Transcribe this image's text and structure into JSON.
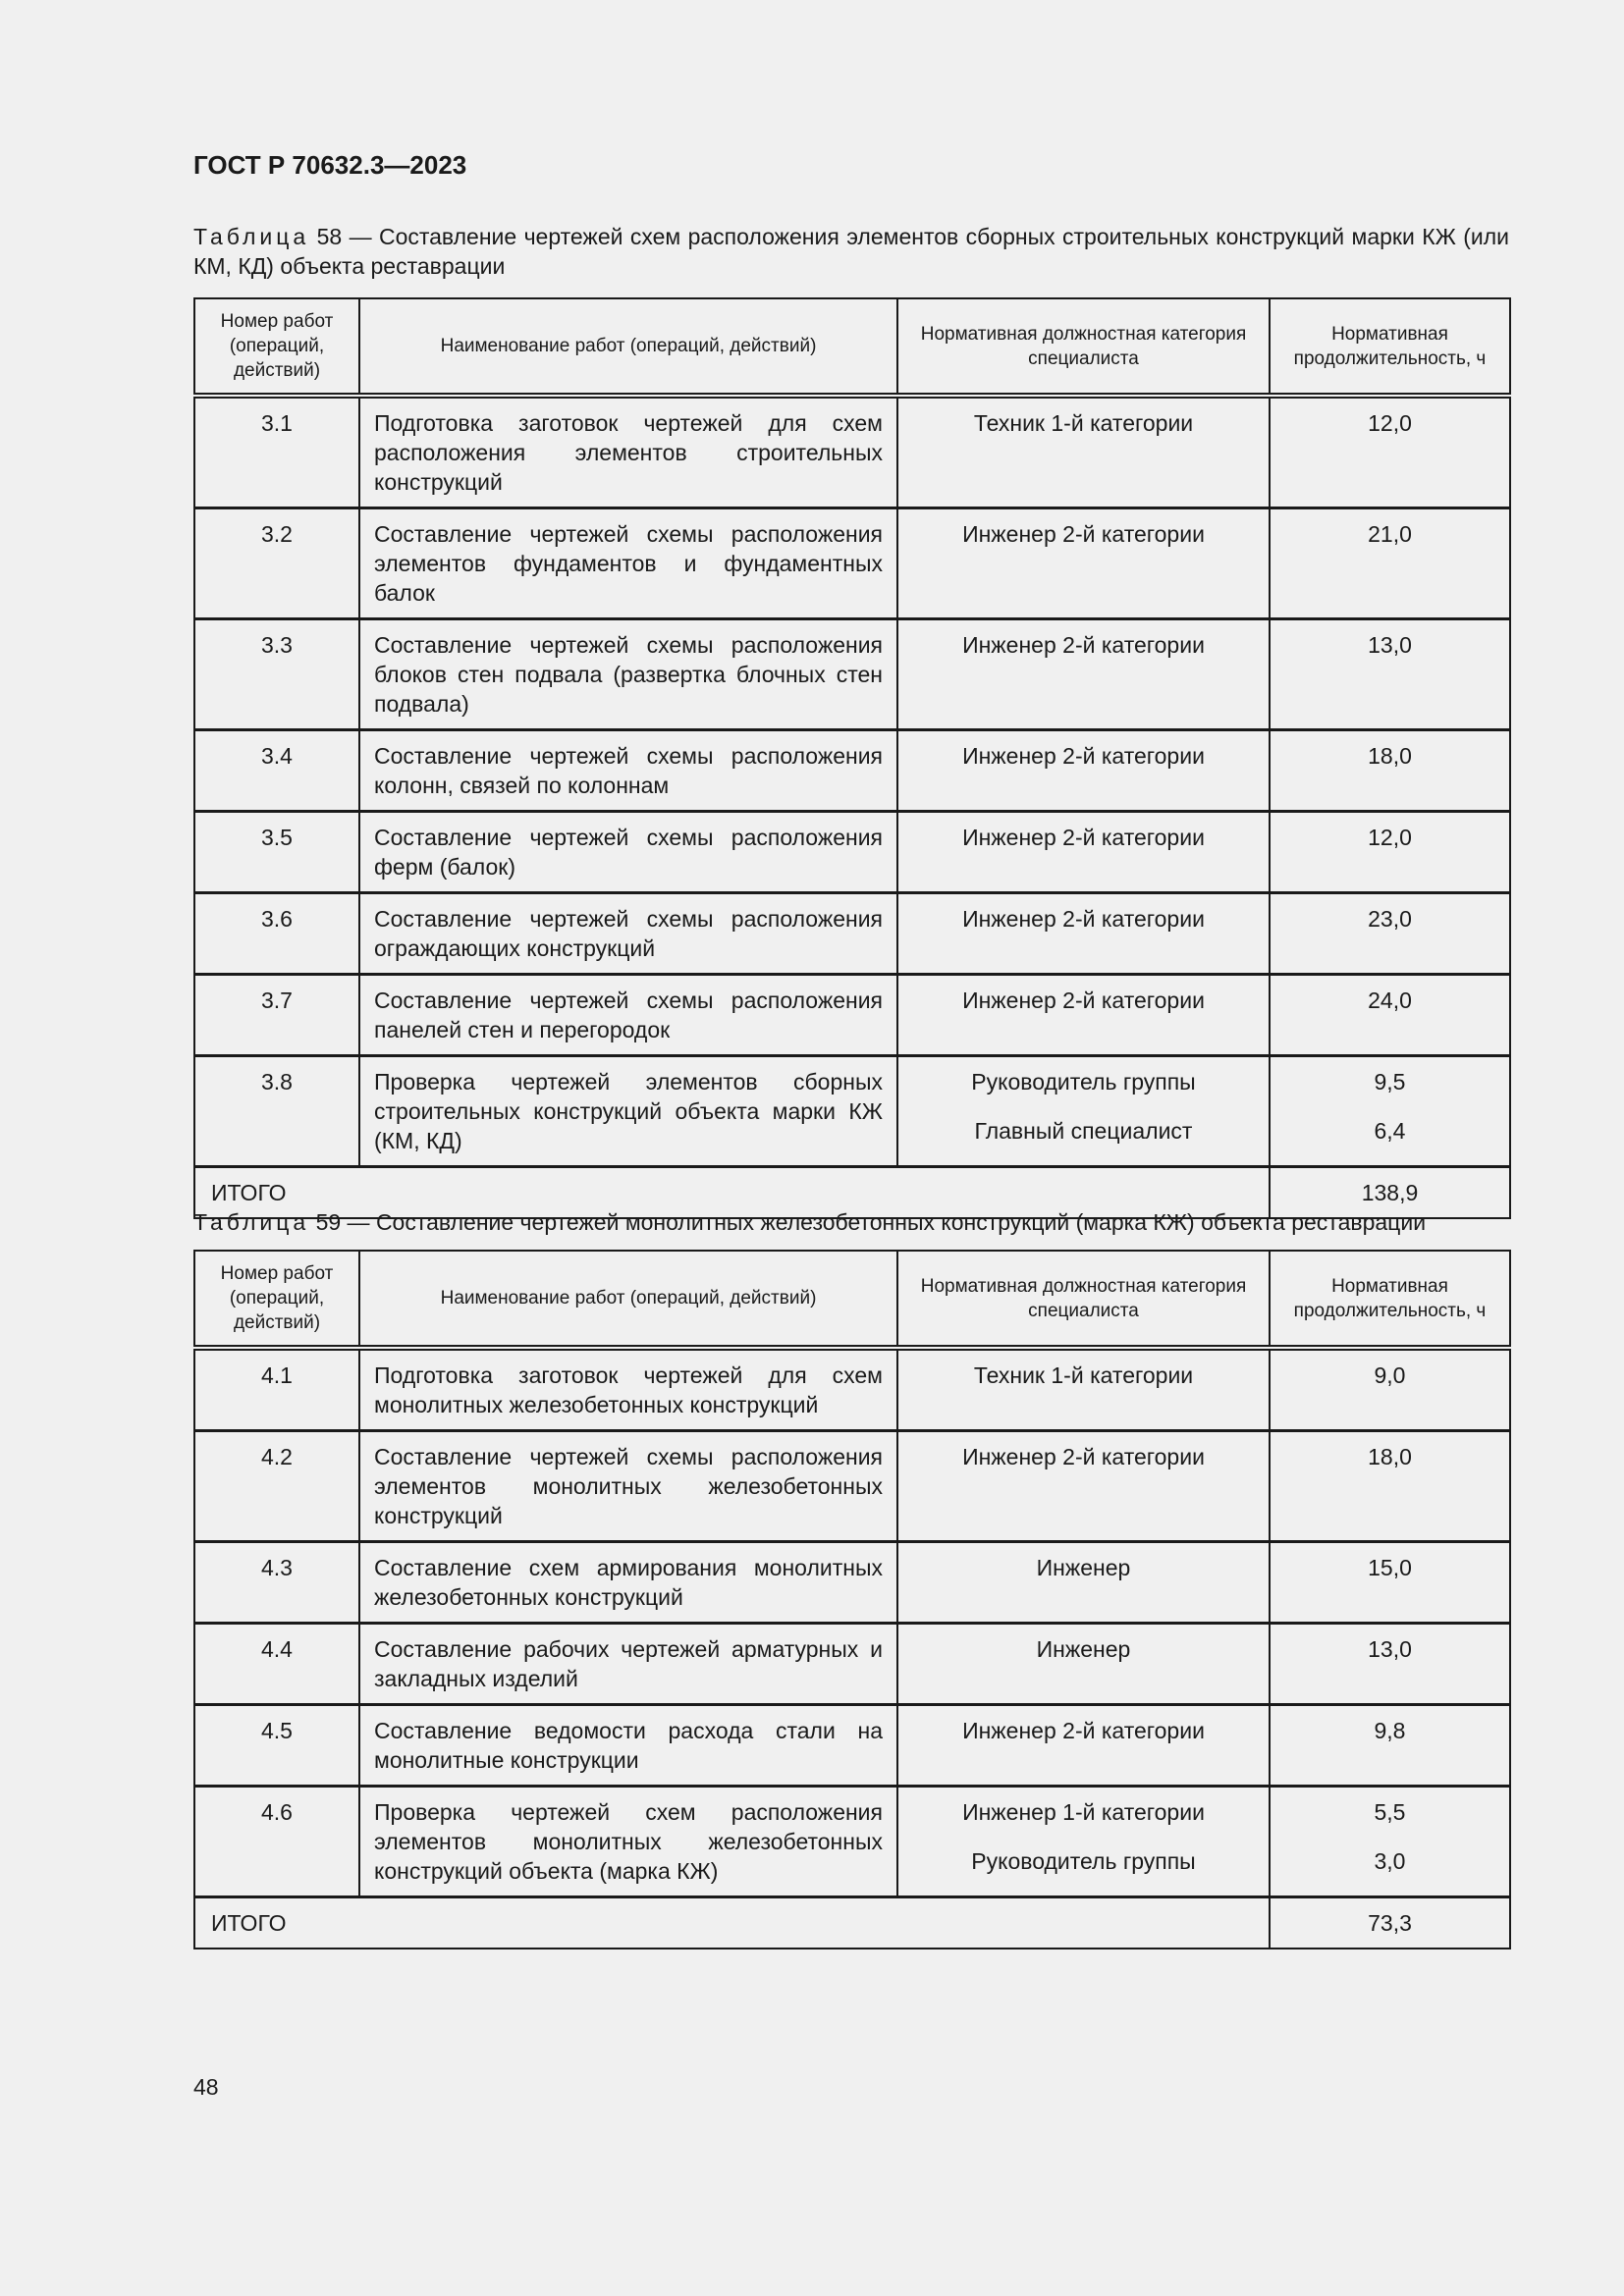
{
  "header": {
    "title": "ГОСТ Р 70632.3—2023"
  },
  "columns": [
    "Номер работ (операций, действий)",
    "Наименование работ (операций, действий)",
    "Нормативная должностная категория специалиста",
    "Нормативная продолжительность, ч"
  ],
  "tables": [
    {
      "label": "Таблица",
      "caption": "58 — Составление чертежей схем расположения элементов сборных строительных конструкций марки КЖ (или КМ, КД) объекта реставрации",
      "rows": [
        {
          "num": "3.1",
          "name": "Подготовка заготовок чертежей для схем расположения элементов строительных конструкций",
          "cats": [
            "Техник 1-й категории"
          ],
          "durs": [
            "12,0"
          ]
        },
        {
          "num": "3.2",
          "name": "Составление чертежей схемы расположе­ния элементов фундаментов и фундамент­ных балок",
          "cats": [
            "Инженер 2-й категории"
          ],
          "durs": [
            "21,0"
          ]
        },
        {
          "num": "3.3",
          "name": "Составление чертежей схемы расположе­ния блоков стен подвала (развертка блоч­ных стен подвала)",
          "cats": [
            "Инженер 2-й категории"
          ],
          "durs": [
            "13,0"
          ]
        },
        {
          "num": "3.4",
          "name": "Составление чертежей схемы расположе­ния колонн, связей по колоннам",
          "cats": [
            "Инженер 2-й категории"
          ],
          "durs": [
            "18,0"
          ]
        },
        {
          "num": "3.5",
          "name": "Составление чертежей схемы расположе­ния ферм (балок)",
          "cats": [
            "Инженер 2-й категории"
          ],
          "durs": [
            "12,0"
          ]
        },
        {
          "num": "3.6",
          "name": "Составление чертежей схемы расположе­ния ограждающих конструкций",
          "cats": [
            "Инженер 2-й категории"
          ],
          "durs": [
            "23,0"
          ]
        },
        {
          "num": "3.7",
          "name": "Составление чертежей схемы расположе­ния панелей стен и перегородок",
          "cats": [
            "Инженер 2-й категории"
          ],
          "durs": [
            "24,0"
          ]
        },
        {
          "num": "3.8",
          "name": "Проверка чертежей элементов сборных строительных конструкций объекта марки КЖ (КМ, КД)",
          "cats": [
            "Руководитель группы",
            "Главный специалист"
          ],
          "durs": [
            "9,5",
            "6,4"
          ]
        }
      ],
      "total_label": "ИТОГО",
      "total_value": "138,9"
    },
    {
      "label": "Таблица",
      "caption": "59 — Составление чертежей монолитных железобетонных конструкций (марка КЖ) объекта реставрации",
      "rows": [
        {
          "num": "4.1",
          "name": "Подготовка заготовок чертежей для схем монолитных железобетонных конструкций",
          "cats": [
            "Техник 1-й категории"
          ],
          "durs": [
            "9,0"
          ]
        },
        {
          "num": "4.2",
          "name": "Составление чертежей схемы расположе­ния элементов монолитных железобетон­ных конструкций",
          "cats": [
            "Инженер 2-й категории"
          ],
          "durs": [
            "18,0"
          ]
        },
        {
          "num": "4.3",
          "name": "Составление схем армирования монолит­ных железобетонных конструкций",
          "cats": [
            "Инженер"
          ],
          "durs": [
            "15,0"
          ]
        },
        {
          "num": "4.4",
          "name": "Составление рабочих чертежей арматурных и закладных изделий",
          "cats": [
            "Инженер"
          ],
          "durs": [
            "13,0"
          ]
        },
        {
          "num": "4.5",
          "name": "Составление ведомости расхода стали на монолитные конструкции",
          "cats": [
            "Инженер 2-й категории"
          ],
          "durs": [
            "9,8"
          ]
        },
        {
          "num": "4.6",
          "name": "Проверка чертежей схем расположения элементов монолитных железобетонных конструкций объекта (марка КЖ)",
          "cats": [
            "Инженер 1-й категории",
            "Руководитель группы"
          ],
          "durs": [
            "5,5",
            "3,0"
          ]
        }
      ],
      "total_label": "ИТОГО",
      "total_value": "73,3"
    }
  ],
  "footer": {
    "page_number": "48"
  }
}
